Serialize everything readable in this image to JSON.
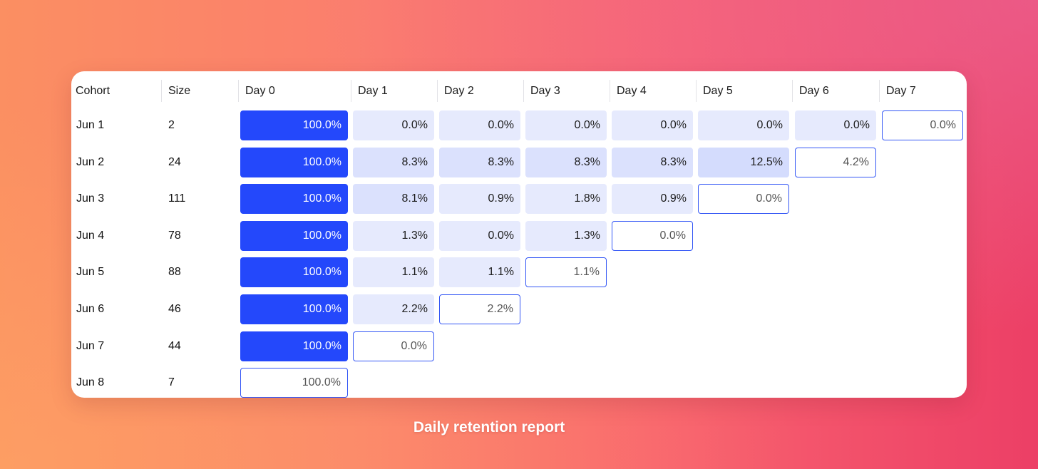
{
  "caption": "Daily retention report",
  "headers": {
    "cohort": "Cohort",
    "size": "Size",
    "days": [
      "Day 0",
      "Day 1",
      "Day 2",
      "Day 3",
      "Day 4",
      "Day 5",
      "Day 6",
      "Day 7"
    ]
  },
  "colors": {
    "full": "#2448fb",
    "high": "#d4dcfd",
    "mid": "#dbe1fd",
    "low": "#e6eafd",
    "partial_border": "#3457f5"
  },
  "chart_data": {
    "type": "table",
    "title": "Daily retention report",
    "columns": [
      "Cohort",
      "Size",
      "Day 0",
      "Day 1",
      "Day 2",
      "Day 3",
      "Day 4",
      "Day 5",
      "Day 6",
      "Day 7"
    ],
    "rows": [
      {
        "cohort": "Jun 1",
        "size": "2",
        "values": [
          "100.0%",
          "0.0%",
          "0.0%",
          "0.0%",
          "0.0%",
          "0.0%",
          "0.0%",
          "0.0%"
        ]
      },
      {
        "cohort": "Jun 2",
        "size": "24",
        "values": [
          "100.0%",
          "8.3%",
          "8.3%",
          "8.3%",
          "8.3%",
          "12.5%",
          "4.2%"
        ]
      },
      {
        "cohort": "Jun 3",
        "size": "111",
        "values": [
          "100.0%",
          "8.1%",
          "0.9%",
          "1.8%",
          "0.9%",
          "0.0%"
        ]
      },
      {
        "cohort": "Jun 4",
        "size": "78",
        "values": [
          "100.0%",
          "1.3%",
          "0.0%",
          "1.3%",
          "0.0%"
        ]
      },
      {
        "cohort": "Jun 5",
        "size": "88",
        "values": [
          "100.0%",
          "1.1%",
          "1.1%",
          "1.1%"
        ]
      },
      {
        "cohort": "Jun 6",
        "size": "46",
        "values": [
          "100.0%",
          "2.2%",
          "2.2%"
        ]
      },
      {
        "cohort": "Jun 7",
        "size": "44",
        "values": [
          "100.0%",
          "0.0%"
        ]
      },
      {
        "cohort": "Jun 8",
        "size": "7",
        "values": [
          "100.0%"
        ]
      }
    ],
    "note_last_cell_partial": true
  }
}
